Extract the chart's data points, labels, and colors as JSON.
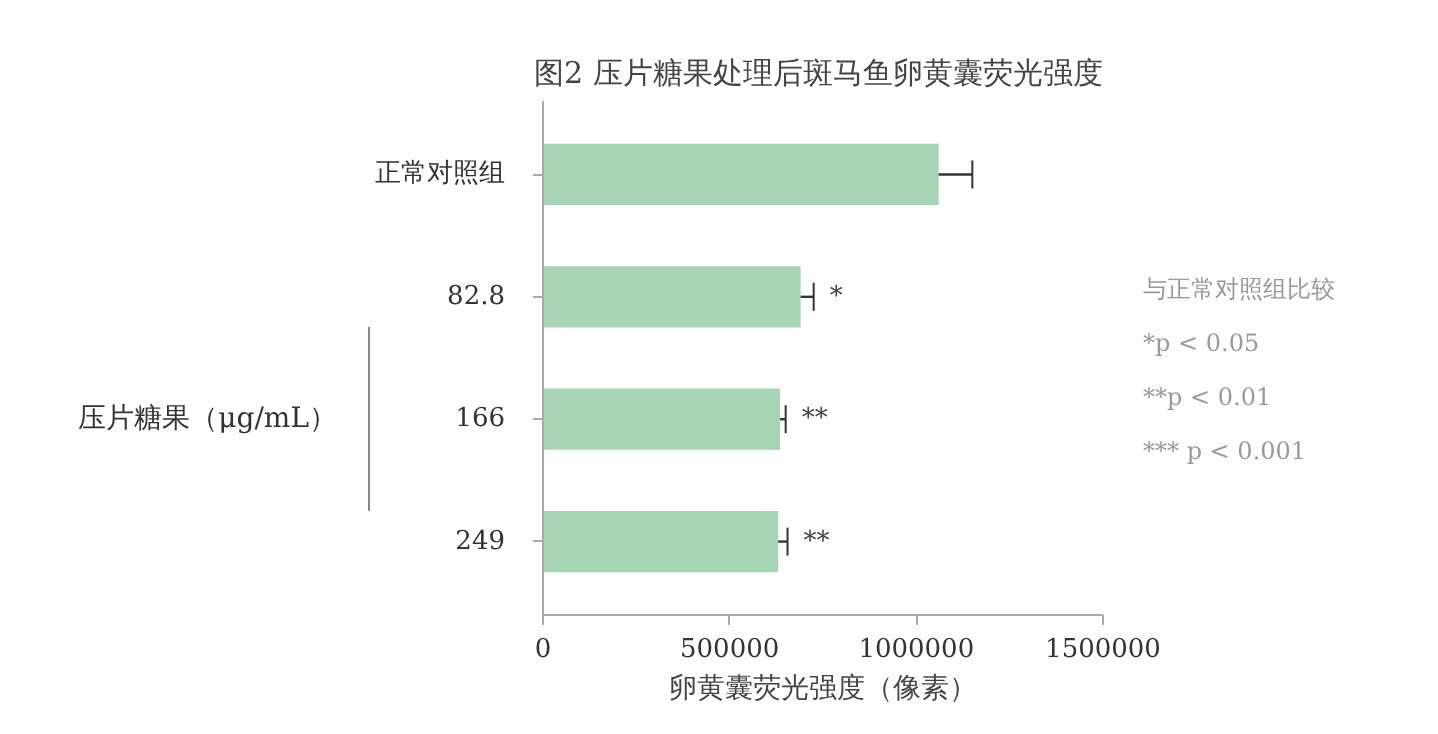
{
  "chart_data": {
    "type": "bar",
    "orientation": "horizontal",
    "title": "图2  压片糖果处理后斑马鱼卵黄囊荧光强度",
    "xlabel": "卵黄囊荧光强度（像素）",
    "ylabel": "压片糖果（μg/mL）",
    "categories": [
      "正常对照组",
      "82.8",
      "166",
      "249"
    ],
    "values": [
      1060000,
      690000,
      635000,
      630000
    ],
    "errors": [
      90000,
      35000,
      15000,
      25000
    ],
    "color": "#a5d5b4",
    "xlim": [
      0,
      1500000
    ],
    "xticks": [
      0,
      500000,
      1000000,
      1500000
    ],
    "grid": false,
    "annotations": [
      {
        "text": "*",
        "x": 725000,
        "y": "82.8"
      },
      {
        "text": "**",
        "x": 650000,
        "y": "166"
      },
      {
        "text": "**",
        "x": 655000,
        "y": "249"
      },
      "与正常对照组比较",
      "*p < 0.05",
      "**p < 0.01",
      "*** p < 0.001"
    ]
  }
}
